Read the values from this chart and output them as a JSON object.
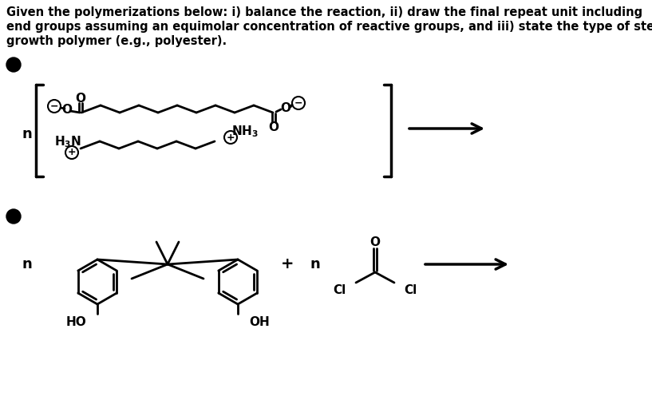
{
  "title_line1": "Given the polymerizations below: i) balance the reaction, ii) draw the final repeat unit including",
  "title_line2": "end groups assuming an equimolar concentration of reactive groups, and iii) state the type of step",
  "title_line3": "growth polymer (e.g., polyester).",
  "bg_color": "#ffffff",
  "text_color": "#000000",
  "figsize": [
    8.17,
    5.16
  ],
  "dpi": 100
}
